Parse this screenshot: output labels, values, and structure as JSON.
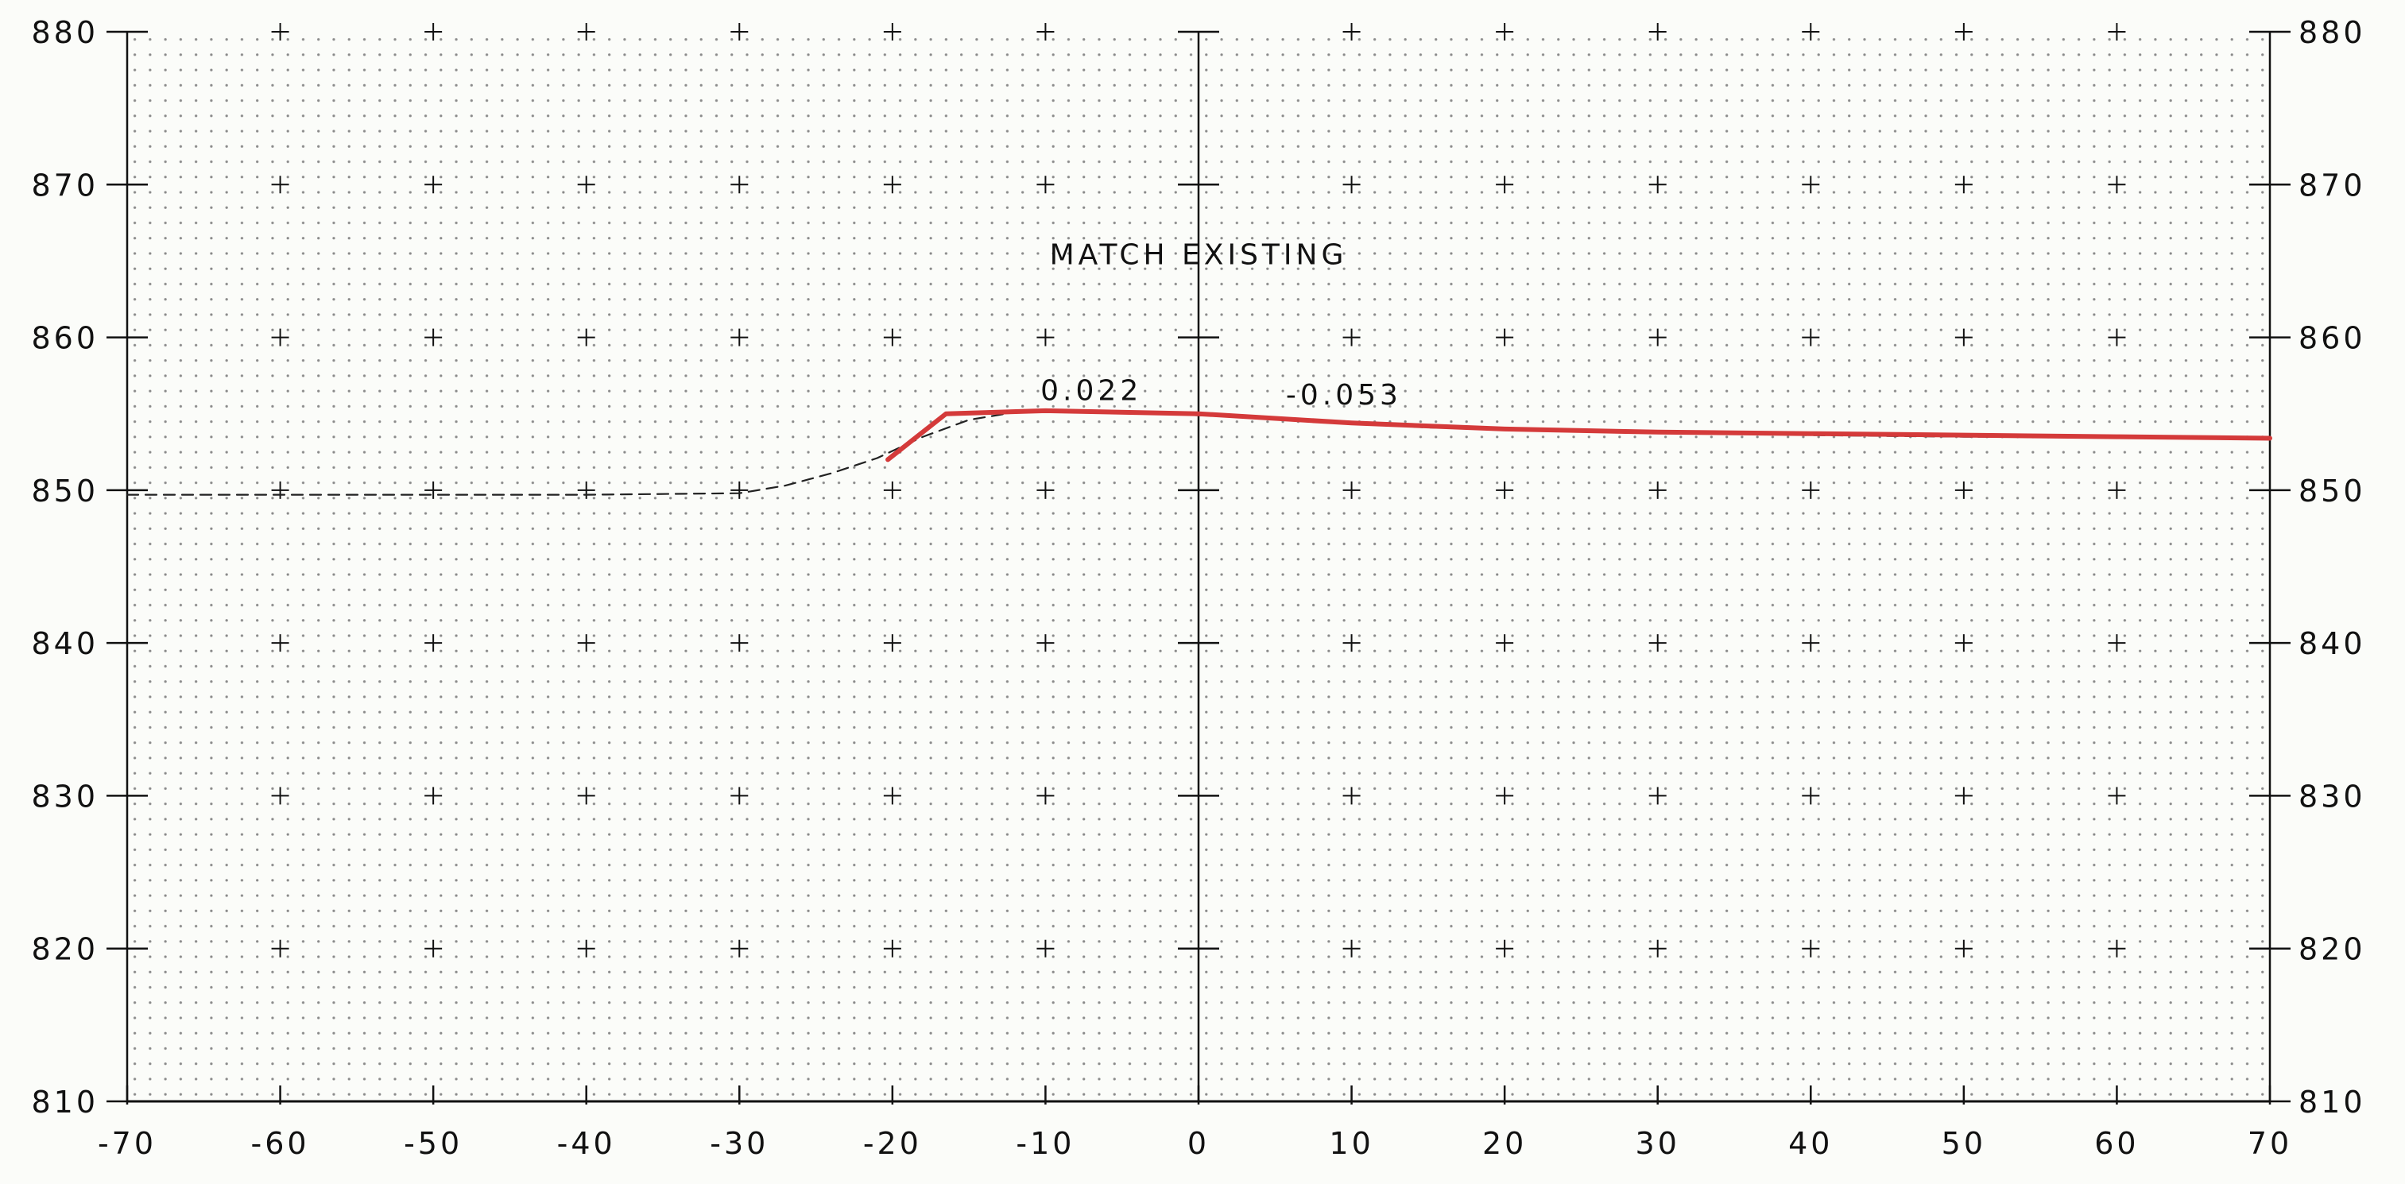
{
  "colors": {
    "background": "#fbfcf9",
    "frame": "#111111",
    "grid_dots": "#8a8a8a",
    "existing_ground": "#222222",
    "proposed_grade": "#d43a3a"
  },
  "chart_data": {
    "type": "line",
    "title": "",
    "xlabel": "",
    "ylabel": "",
    "xlim": [
      -70,
      70
    ],
    "ylim": [
      810,
      880
    ],
    "x_ticks": [
      "-70",
      "-60",
      "-50",
      "-40",
      "-30",
      "-20",
      "-10",
      "0",
      "10",
      "20",
      "30",
      "40",
      "50",
      "60",
      "70"
    ],
    "y_ticks": [
      "880",
      "870",
      "860",
      "850",
      "840",
      "830",
      "820",
      "810"
    ],
    "grid": "dotted",
    "series": [
      {
        "style": "dashed",
        "color": "#222222",
        "x": [
          -70,
          -60,
          -50,
          -40,
          -30,
          -27,
          -24,
          -21,
          -18,
          -15,
          -12,
          -8,
          -4,
          0,
          5,
          10,
          15,
          20,
          30,
          40,
          50,
          60,
          70
        ],
        "y": [
          849.7,
          849.7,
          849.7,
          849.7,
          849.8,
          850.3,
          851.1,
          852.1,
          853.5,
          854.6,
          855.1,
          855.2,
          855.1,
          854.9,
          854.7,
          854.4,
          854.1,
          854.0,
          853.8,
          853.6,
          853.5,
          853.5,
          853.5
        ]
      },
      {
        "style": "solid",
        "color": "#d43a3a",
        "x": [
          -20.3,
          -16.5,
          -10,
          0,
          10,
          20,
          30,
          40,
          50,
          60,
          70
        ],
        "y": [
          852.0,
          855.0,
          855.2,
          855.0,
          854.4,
          854.0,
          853.8,
          853.7,
          853.6,
          853.5,
          853.4
        ]
      }
    ],
    "annotations": [
      {
        "text": "MATCH EXISTING",
        "x": 0,
        "y": 864.8
      },
      {
        "text": "0.022",
        "x": -7,
        "y": 855.9
      },
      {
        "text": "-0.053",
        "x": 9.5,
        "y": 855.6
      }
    ]
  }
}
